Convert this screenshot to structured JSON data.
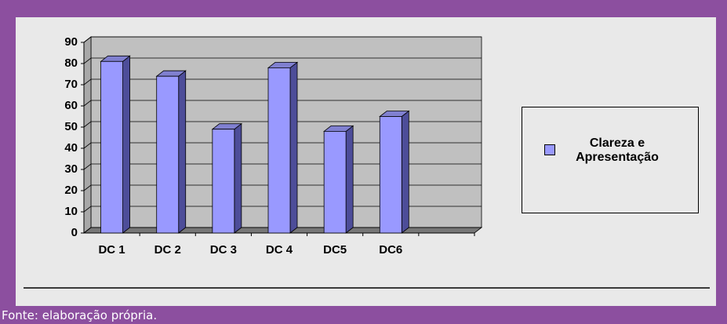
{
  "chart_data": {
    "type": "bar",
    "categories": [
      "DC 1",
      "DC 2",
      "DC 3",
      "DC 4",
      "DC5",
      "DC6",
      null
    ],
    "series": [
      {
        "name": "Clareza e Apresentação",
        "color": "#9999ff",
        "values": [
          81,
          74,
          49,
          78,
          48,
          55,
          null
        ]
      }
    ],
    "ylim": [
      0,
      90
    ],
    "yticks": [
      0,
      10,
      20,
      30,
      40,
      50,
      60,
      70,
      80,
      90
    ],
    "grid": true,
    "legend": "right"
  },
  "caption": "Fonte: elaboração própria."
}
